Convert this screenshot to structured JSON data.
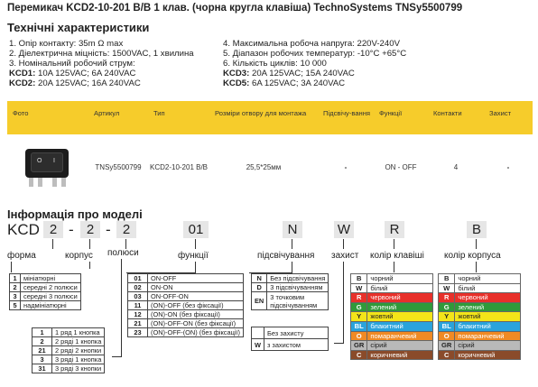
{
  "title": "Перемикач KCD2-10-201 B/B 1 клав. (чорна кругла клавіша) TechnoSystems TNSy5500799",
  "subtitle": "Технічні характеристики",
  "specs_left": {
    "l1": "1. Опір контакту: 35m Ω  max",
    "l2": "2. Діелектрична міцність:  1500VAC, 1 хвилина",
    "l3": "3. Номінальний робочий струм:",
    "kcd1_label": "KCD1:",
    "kcd1_value": " 10A 125VAC; 6A 240VAC",
    "kcd2_label": "KCD2:",
    "kcd2_value": " 20A 125VAC; 16A 240VAC"
  },
  "specs_right": {
    "l4": "4. Максимальна робоча напруга: 220V-240V",
    "l5": "5. Діапазон робочих температур: -10°C +65°C",
    "l6": "6. Кількість циклів: 10 000",
    "kcd3_label": "KCD3:",
    "kcd3_value": " 20A 125VAC; 15A 240VAC",
    "kcd5_label": "KCD5:",
    "kcd5_value": " 6A 125VAC; 3A 240VAC"
  },
  "product_table": {
    "headers": [
      "Фото",
      "Артикул",
      "Тип",
      "Розміри отвору для монтажа",
      "Підсвічу-вання",
      "Функції",
      "Контакти",
      "Захист"
    ],
    "row": {
      "switch_off": "O",
      "switch_on": "I",
      "article": "TNSy5500799",
      "type": "KCD2-10-201 B/B",
      "size": "25,5*25мм",
      "light": "-",
      "func": "ON - OFF",
      "contacts": "4",
      "protect": "-"
    }
  },
  "model": {
    "heading": "Інформація про моделі",
    "code": {
      "prefix": "KCD",
      "v1": "2",
      "sep1": "-",
      "v2": "2",
      "sep2": "-",
      "v3": "2",
      "v4": "01",
      "v5": "N",
      "v6": "W",
      "v7": "R",
      "v8": "B"
    },
    "labels": {
      "form": "форма",
      "body": "корпус",
      "poles": "полюси",
      "funcs": "функції",
      "light": "підсвічування",
      "protect": "захист",
      "key_color": "колір клавіші",
      "body_color": "колір корпуса"
    },
    "form_table": [
      {
        "k": "1",
        "v": "мініатюрні"
      },
      {
        "k": "2",
        "v": "середні 2 полюси"
      },
      {
        "k": "3",
        "v": "середні 3 полюси"
      },
      {
        "k": "5",
        "v": "надмініатюрні"
      }
    ],
    "func_table": [
      {
        "k": "01",
        "v": "ON-OFF"
      },
      {
        "k": "02",
        "v": "ON-ON"
      },
      {
        "k": "03",
        "v": "ON-OFF-ON"
      },
      {
        "k": "11",
        "v": "(ON)-OFF (без фіксації)"
      },
      {
        "k": "12",
        "v": "(ON)-ON (без фіксації)"
      },
      {
        "k": "21",
        "v": "(ON)-OFF-ON (без фіксації)"
      },
      {
        "k": "23",
        "v": "(ON)-OFF-(ON) (без фіксації)"
      }
    ],
    "light_table": [
      {
        "k": "N",
        "v": "Без підсвічування"
      },
      {
        "k": "D",
        "v": "3 підсвічуванням"
      },
      {
        "k": "EN",
        "v": "3 точковим підсвічуванням"
      }
    ],
    "protect_table": [
      {
        "k": "",
        "v": "Без захисту"
      },
      {
        "k": "W",
        "v": "з захистом"
      }
    ],
    "body_table": [
      {
        "k": "1",
        "v": "1 ряд 1 кнопка"
      },
      {
        "k": "2",
        "v": "2 ряді 1 кнопка"
      },
      {
        "k": "21",
        "v": "2 ряді 2 кнопки"
      },
      {
        "k": "3",
        "v": "3 ряді 1 кнопка"
      },
      {
        "k": "31",
        "v": "3 ряді 3 кнопки"
      }
    ],
    "colors": [
      {
        "k": "B",
        "v": "чорний",
        "c": "#ffffff",
        "t": "#222222"
      },
      {
        "k": "W",
        "v": "білий",
        "c": "#ffffff",
        "t": "#222222"
      },
      {
        "k": "R",
        "v": "червоний",
        "c": "#e8302a",
        "t": "#ffffff"
      },
      {
        "k": "G",
        "v": "зелений",
        "c": "#2f9a3a",
        "t": "#ffffff"
      },
      {
        "k": "Y",
        "v": "жовтий",
        "c": "#f3e419",
        "t": "#222222"
      },
      {
        "k": "BL",
        "v": "блакитний",
        "c": "#2aa3dc",
        "t": "#ffffff"
      },
      {
        "k": "O",
        "v": "помаранчевий",
        "c": "#f08a24",
        "t": "#ffffff"
      },
      {
        "k": "GR",
        "v": "сірий",
        "c": "#b9b9b9",
        "t": "#222222"
      },
      {
        "k": "C",
        "v": "коричневий",
        "c": "#8a4b2a",
        "t": "#ffffff"
      }
    ]
  }
}
